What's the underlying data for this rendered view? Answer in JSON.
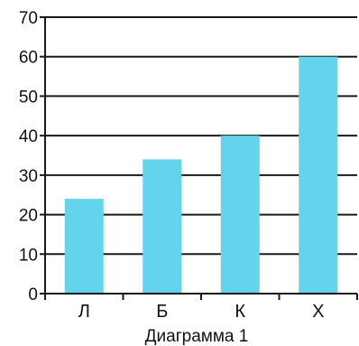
{
  "chart_data": {
    "type": "bar",
    "categories": [
      "Л",
      "Б",
      "К",
      "Х"
    ],
    "values": [
      24,
      34,
      40,
      60
    ],
    "title": "Диаграмма 1",
    "xlabel": "",
    "ylabel": "",
    "ylim": [
      0,
      70
    ],
    "yticks": [
      "0",
      "10",
      "20",
      "30",
      "40",
      "50",
      "60",
      "70"
    ],
    "grid": true,
    "bar_color": "#64d3ec"
  }
}
